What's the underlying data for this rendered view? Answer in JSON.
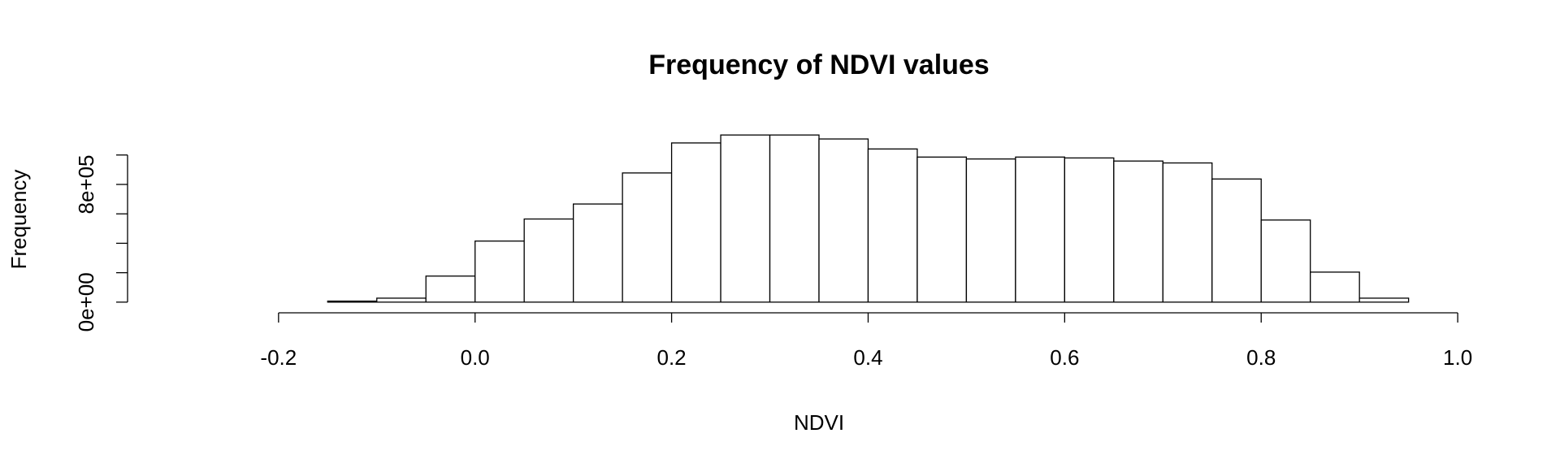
{
  "chart_data": {
    "type": "histogram",
    "title": "Frequency of NDVI values",
    "x_label": "NDVI",
    "y_label": "Frequency",
    "bins": [
      -0.3,
      -0.25,
      -0.2,
      -0.15,
      -0.1,
      -0.05,
      0,
      0.05,
      0.1,
      0.15,
      0.2,
      0.25,
      0.3,
      0.35,
      0.4,
      0.45,
      0.5,
      0.55,
      0.6,
      0.65,
      0.7,
      0.75,
      0.8,
      0.85,
      0.9,
      0.95,
      1.0
    ],
    "values": [
      0,
      0,
      0,
      7000,
      27000,
      177000,
      415000,
      565000,
      667000,
      878000,
      1082000,
      1136000,
      1136000,
      1109000,
      1041000,
      986000,
      973000,
      986000,
      980000,
      959000,
      946000,
      837000,
      558000,
      204000,
      27000,
      0
    ],
    "color": "#ffffff",
    "edge_color": "#000000",
    "xlim": [
      -0.352,
      1.052
    ],
    "xticks": [
      {
        "value": -0.2,
        "label": "-0.2"
      },
      {
        "value": 0,
        "label": "0.0"
      },
      {
        "value": 0.2,
        "label": "0.2"
      },
      {
        "value": 0.4,
        "label": "0.4"
      },
      {
        "value": 0.6,
        "label": "0.6"
      },
      {
        "value": 0.8,
        "label": "0.8"
      },
      {
        "value": 1.0,
        "label": "1.0"
      }
    ],
    "ylim": [
      -45000,
      1181000
    ],
    "yticks": [
      {
        "value": 0,
        "label": "0e+00"
      },
      {
        "value": 200000,
        "label": null
      },
      {
        "value": 400000,
        "label": null
      },
      {
        "value": 600000,
        "label": null
      },
      {
        "value": 800000,
        "label": "8e+05"
      },
      {
        "value": 1000000,
        "label": null
      }
    ],
    "grid": false
  }
}
